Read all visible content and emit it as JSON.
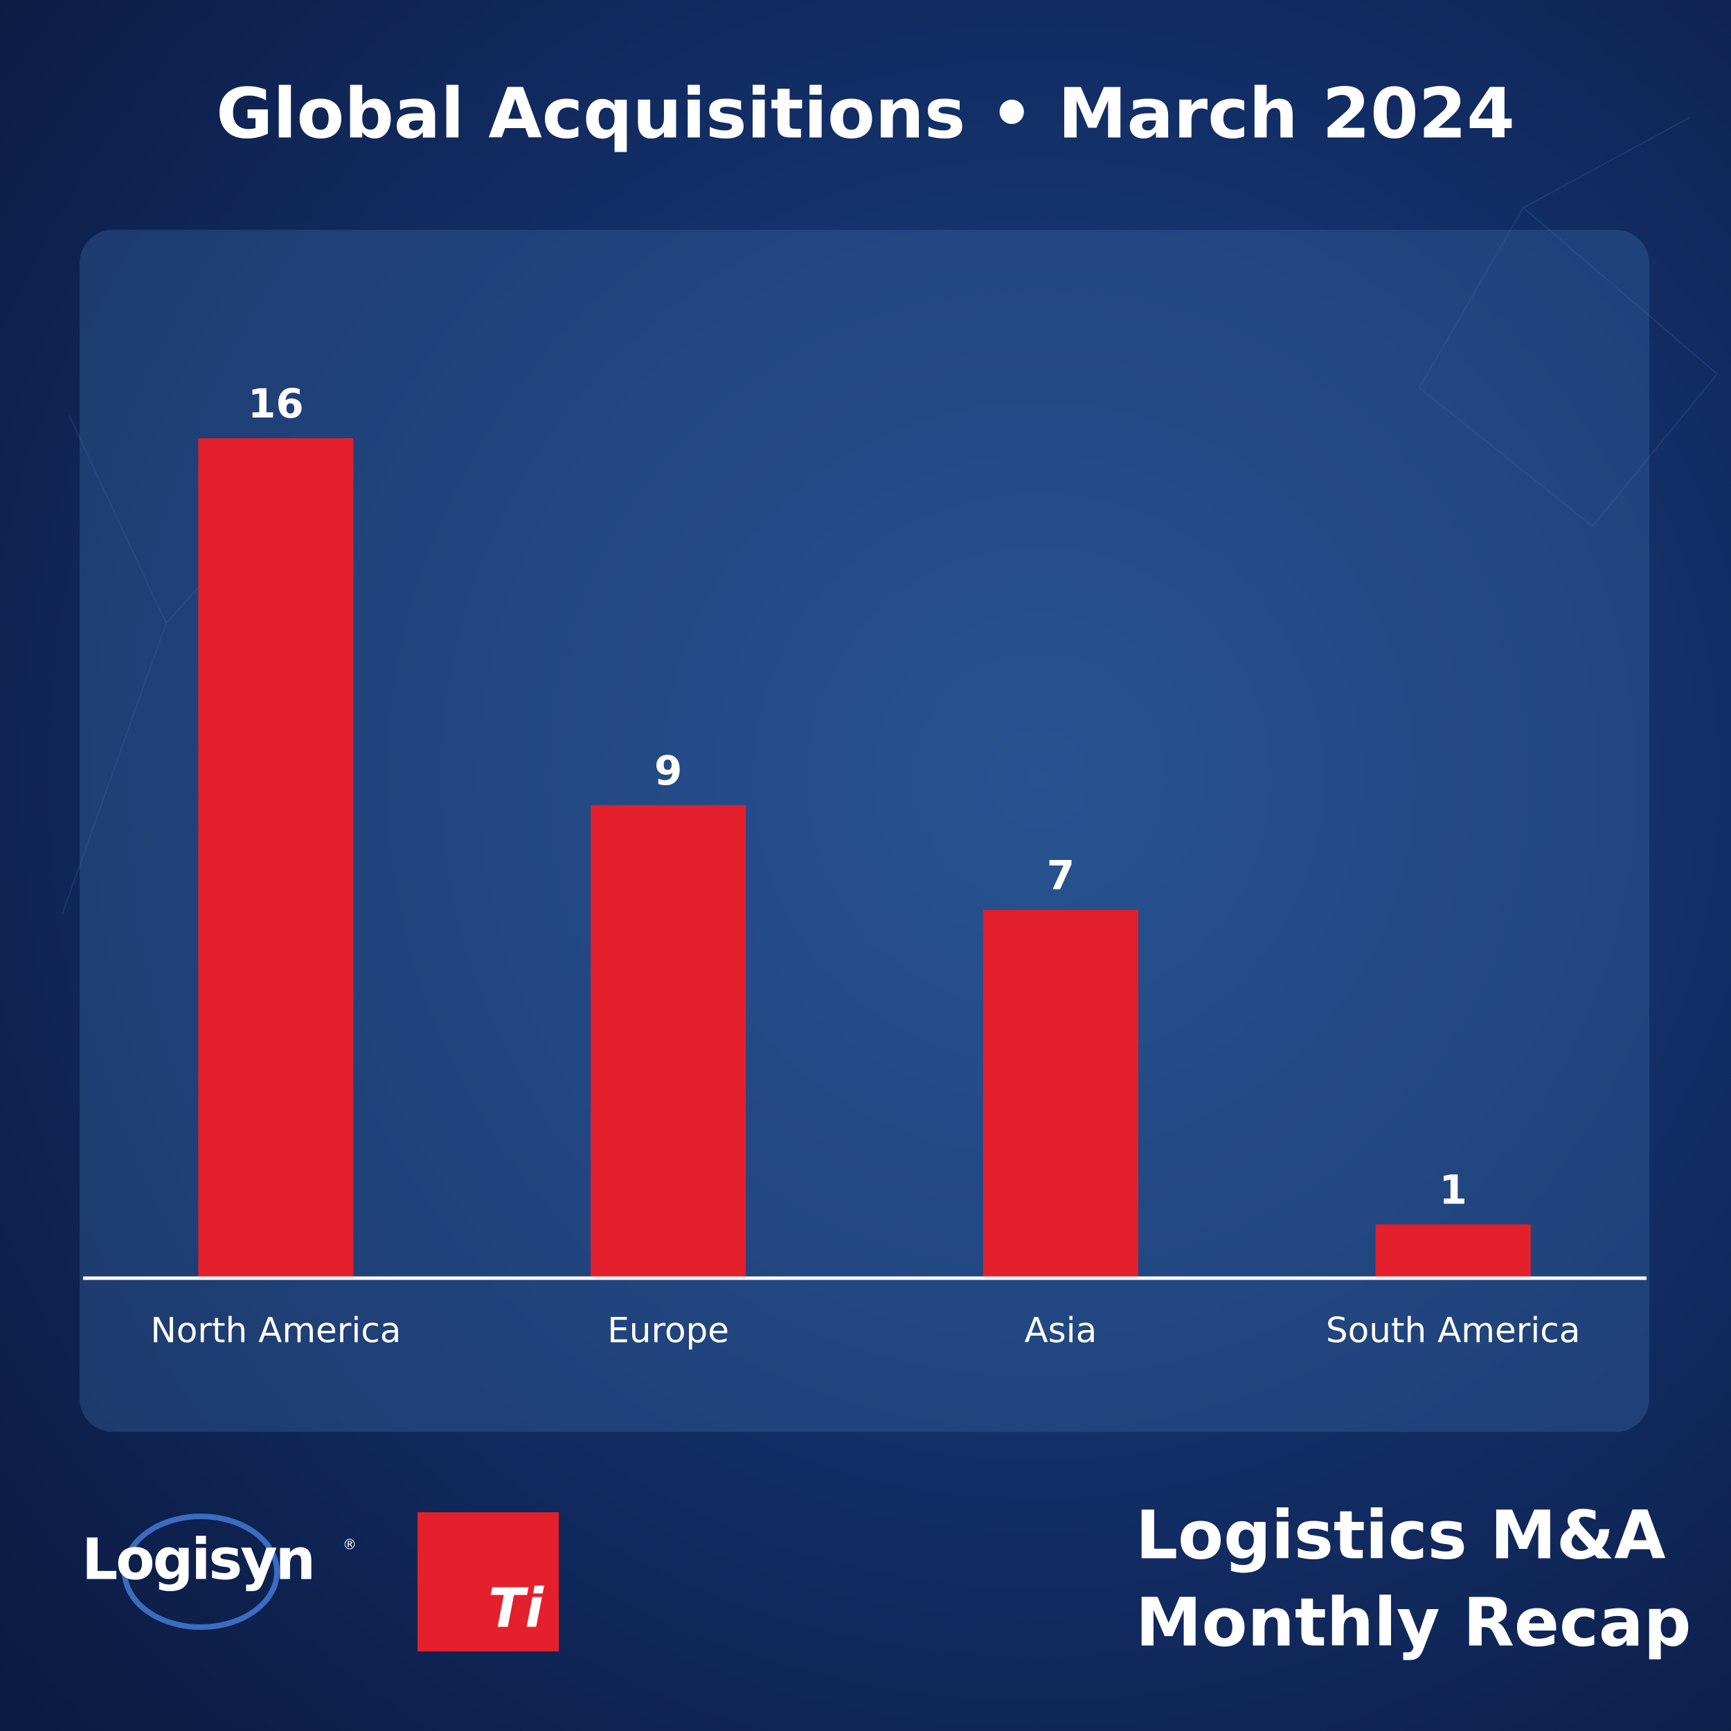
{
  "chart_data": {
    "type": "bar",
    "title": "Global Acquisitions • March 2024",
    "categories": [
      "North America",
      "Europe",
      "Asia",
      "South America"
    ],
    "values": [
      16,
      9,
      7,
      1
    ],
    "color": "#e3202c"
  },
  "branding": {
    "logo": "Logisyn",
    "registered": "®",
    "badge": "Ti",
    "tagline": [
      "Logistics M&A",
      "Monthly Recap"
    ]
  }
}
